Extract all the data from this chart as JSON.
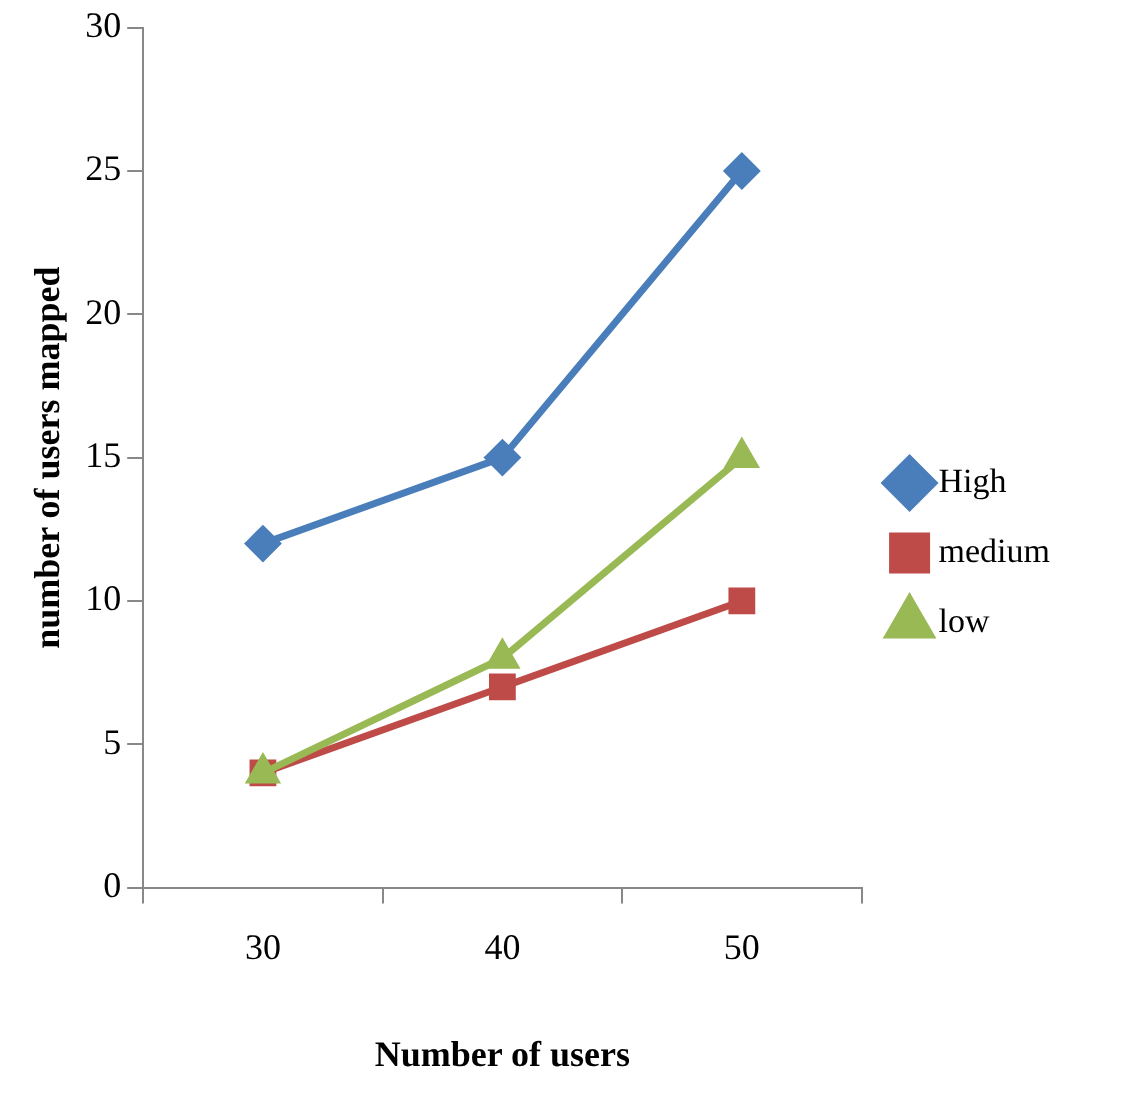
{
  "chart_data": {
    "type": "line",
    "xlabel": "Number of users",
    "ylabel": "number of users mapped",
    "categories": [
      "30",
      "40",
      "50"
    ],
    "series": [
      {
        "name": "High",
        "color": "#4a7ebb",
        "marker": "diamond",
        "values": [
          12,
          15,
          25
        ]
      },
      {
        "name": "medium",
        "color": "#be4b48",
        "marker": "square",
        "values": [
          4,
          7,
          10
        ]
      },
      {
        "name": "low",
        "color": "#98b954",
        "marker": "triangle",
        "values": [
          4,
          8,
          15
        ]
      }
    ],
    "ylim": [
      0,
      30
    ],
    "yticks": [
      0,
      5,
      10,
      15,
      20,
      25,
      30
    ],
    "grid": false,
    "legend": "right",
    "line_style": "solid"
  }
}
